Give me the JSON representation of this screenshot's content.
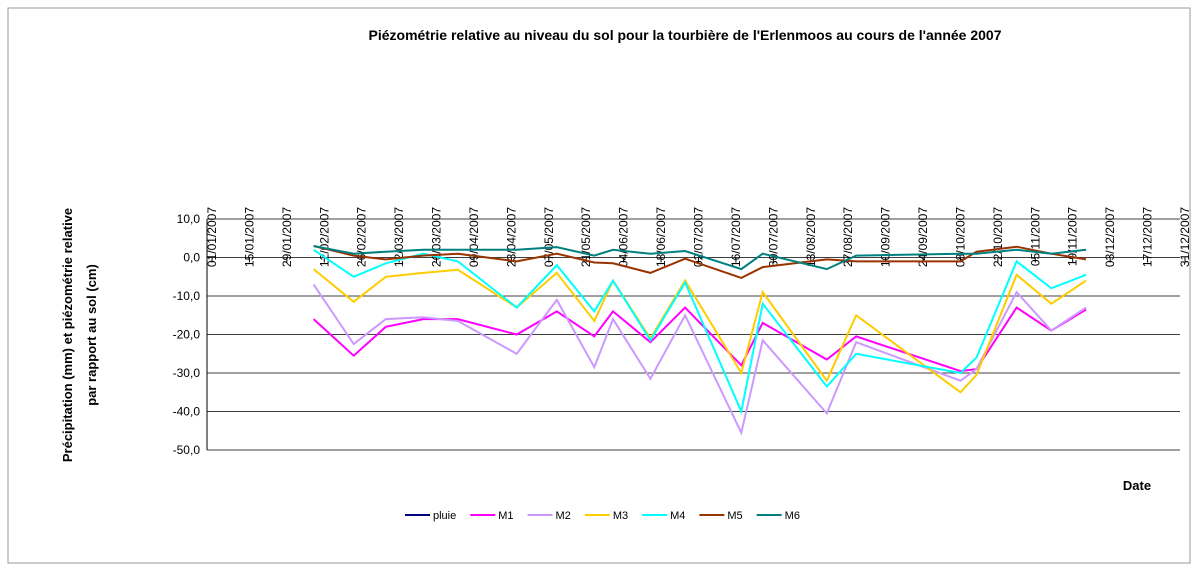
{
  "chart_data": {
    "type": "line",
    "title": "Piézométrie relative au niveau du sol pour la tourbière de l'Erlenmoos au cours de l'année 2007",
    "ylabel": [
      "Précipitation (mm) et piézométrie relative",
      "par rapport au sol (cm)"
    ],
    "xlabel": "Date",
    "x": [
      "08/02/2007",
      "23/02/2007",
      "07/03/2007",
      "21/03/2007",
      "03/04/2007",
      "25/04/2007",
      "10/05/2007",
      "24/05/2007",
      "31/05/2007",
      "14/06/2007",
      "27/06/2007",
      "18/07/2007",
      "26/07/2007",
      "19/08/2007",
      "30/08/2007",
      "08/10/2007",
      "14/10/2007",
      "29/10/2007",
      "11/11/2007",
      "24/11/2007"
    ],
    "xlim": [
      "01/01/2007",
      "31/12/2007"
    ],
    "xticks": [
      "01/01/2007",
      "15/01/2007",
      "29/01/2007",
      "12/02/2007",
      "26/02/2007",
      "12/03/2007",
      "26/03/2007",
      "09/04/2007",
      "23/04/2007",
      "07/05/2007",
      "21/05/2007",
      "04/06/2007",
      "18/06/2007",
      "02/07/2007",
      "16/07/2007",
      "30/07/2007",
      "13/08/2007",
      "27/08/2007",
      "10/09/2007",
      "24/09/2007",
      "08/10/2007",
      "22/10/2007",
      "05/11/2007",
      "19/11/2007",
      "03/12/2007",
      "17/12/2007",
      "31/12/2007"
    ],
    "ylim": [
      -50,
      10
    ],
    "yticks": [
      {
        "value": -50,
        "label": "-50,0"
      },
      {
        "value": -40,
        "label": "-40,0"
      },
      {
        "value": -30,
        "label": "-30,0"
      },
      {
        "value": -20,
        "label": "-20,0"
      },
      {
        "value": -10,
        "label": "-10,0"
      },
      {
        "value": 0,
        "label": "0,0"
      },
      {
        "value": 10,
        "label": "10,0"
      }
    ],
    "grid": true,
    "legend": "bottom",
    "series": [
      {
        "name": "pluie",
        "color": "#000080",
        "values": [
          null,
          null,
          null,
          null,
          null,
          null,
          null,
          null,
          null,
          null,
          null,
          null,
          null,
          null,
          null,
          null,
          null,
          null,
          null,
          null
        ]
      },
      {
        "name": "M1",
        "color": "#ff00ff",
        "values": [
          -16,
          -25.5,
          -18,
          -16,
          -16,
          -20,
          -14,
          -20.5,
          -14,
          -22,
          -13,
          -28,
          -17,
          -26.5,
          -20.5,
          -29.5,
          -29,
          -13,
          -19,
          -13.5
        ]
      },
      {
        "name": "M2",
        "color": "#cc99ff",
        "values": [
          -7,
          -22.5,
          -16,
          -15.5,
          -16.5,
          -25,
          -11,
          -28.5,
          -16,
          -31.5,
          -15,
          -45.5,
          -21.5,
          -40.5,
          -22,
          -32,
          -29,
          -9,
          -19,
          -13
        ]
      },
      {
        "name": "M3",
        "color": "#ffcc00",
        "values": [
          -3,
          -11.5,
          -5,
          -4,
          -3.2,
          -13,
          -4,
          -16.5,
          -6,
          -21,
          -6,
          -30,
          -9,
          -32,
          -15,
          -35,
          -30.5,
          -4.5,
          -12,
          -6
        ]
      },
      {
        "name": "M4",
        "color": "#00ffff",
        "values": [
          2,
          -5,
          -1.5,
          1,
          -1,
          -13,
          -2,
          -14,
          -6,
          -21.5,
          -6.5,
          -40,
          -12,
          -33.5,
          -25,
          -30,
          -26,
          -1,
          -8,
          -4.5
        ]
      },
      {
        "name": "M5",
        "color": "#993300",
        "values": [
          3,
          0.5,
          -0.5,
          0.5,
          1,
          -1,
          1,
          -1.3,
          -1.5,
          -4,
          -0.3,
          -5.3,
          -2.5,
          -0.5,
          -1,
          -1,
          1.5,
          2.8,
          1,
          -0.5
        ]
      },
      {
        "name": "M6",
        "color": "#008080",
        "values": [
          3,
          1,
          1.5,
          2,
          2,
          2,
          2.7,
          0.5,
          2,
          1,
          1.7,
          -3,
          1,
          -3,
          0.5,
          1,
          1,
          2,
          1,
          2
        ]
      }
    ]
  }
}
